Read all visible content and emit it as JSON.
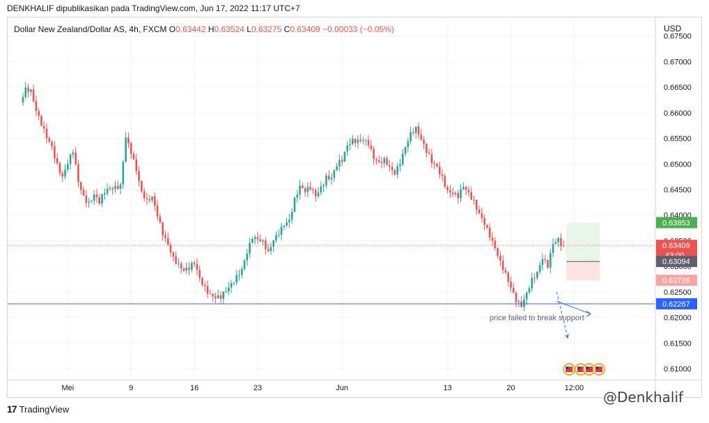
{
  "header": {
    "publish_line": "DENKHALIF dipublikasikan pada TradingView.com, Jun 17, 2022 11:17 UTC+7"
  },
  "legend": {
    "symbol": "Dollar New Zealand/Dollar AS, 4h, FXCM",
    "o_label": "O",
    "o_value": "0.63442",
    "h_label": "H",
    "h_value": "0.63524",
    "l_label": "L",
    "l_value": "0.63275",
    "c_label": "C",
    "c_value": "0.63409",
    "change": "−0.00033 (−0.05%)"
  },
  "currency": "USD",
  "footer": {
    "brand": "TradingView",
    "watermark": "@Denkhalif"
  },
  "colors": {
    "up": "#26a69a",
    "down": "#ef5350",
    "support": "#2962ff",
    "profit_zone": "#e8f5e9",
    "loss_zone": "#fde2e2",
    "grid": "#f0f3fa",
    "axis_text": "#131722"
  },
  "chart_data": {
    "type": "candlestick",
    "symbol": "NZDUSD",
    "timeframe": "4h",
    "ylim": [
      0.6085,
      0.6755
    ],
    "y_ticks": [
      "0.67500",
      "0.67000",
      "0.66500",
      "0.66000",
      "0.65500",
      "0.65000",
      "0.64500",
      "0.64000",
      "0.63500",
      "0.63000",
      "0.62500",
      "0.62000",
      "0.61500",
      "0.61000"
    ],
    "x_ticks": [
      "Mei",
      "9",
      "16",
      "23",
      "Jun",
      "13",
      "20",
      "12:00"
    ],
    "close_path": [
      [
        0,
        0.662
      ],
      [
        2,
        0.664
      ],
      [
        4,
        0.6635
      ],
      [
        6,
        0.66
      ],
      [
        8,
        0.658
      ],
      [
        10,
        0.656
      ],
      [
        12,
        0.654
      ],
      [
        14,
        0.65
      ],
      [
        16,
        0.647
      ],
      [
        18,
        0.6495
      ],
      [
        20,
        0.652
      ],
      [
        22,
        0.6465
      ],
      [
        24,
        0.644
      ],
      [
        26,
        0.643
      ],
      [
        28,
        0.6445
      ],
      [
        30,
        0.6425
      ],
      [
        32,
        0.644
      ],
      [
        34,
        0.6445
      ],
      [
        36,
        0.645
      ],
      [
        38,
        0.646
      ],
      [
        40,
        0.656
      ],
      [
        42,
        0.653
      ],
      [
        44,
        0.649
      ],
      [
        46,
        0.644
      ],
      [
        48,
        0.642
      ],
      [
        50,
        0.643
      ],
      [
        52,
        0.64
      ],
      [
        54,
        0.637
      ],
      [
        56,
        0.635
      ],
      [
        58,
        0.632
      ],
      [
        60,
        0.63
      ],
      [
        62,
        0.6285
      ],
      [
        64,
        0.629
      ],
      [
        66,
        0.6305
      ],
      [
        68,
        0.628
      ],
      [
        70,
        0.6265
      ],
      [
        72,
        0.625
      ],
      [
        74,
        0.624
      ],
      [
        76,
        0.6235
      ],
      [
        78,
        0.6245
      ],
      [
        80,
        0.626
      ],
      [
        82,
        0.628
      ],
      [
        84,
        0.63
      ],
      [
        86,
        0.6335
      ],
      [
        88,
        0.636
      ],
      [
        90,
        0.635
      ],
      [
        92,
        0.634
      ],
      [
        94,
        0.632
      ],
      [
        96,
        0.635
      ],
      [
        98,
        0.637
      ],
      [
        100,
        0.639
      ],
      [
        102,
        0.6395
      ],
      [
        104,
        0.643
      ],
      [
        106,
        0.645
      ],
      [
        108,
        0.644
      ],
      [
        110,
        0.645
      ],
      [
        112,
        0.644
      ],
      [
        114,
        0.646
      ],
      [
        116,
        0.648
      ],
      [
        118,
        0.6475
      ],
      [
        120,
        0.6495
      ],
      [
        122,
        0.65
      ],
      [
        124,
        0.653
      ],
      [
        126,
        0.6545
      ],
      [
        128,
        0.655
      ],
      [
        130,
        0.6555
      ],
      [
        132,
        0.6545
      ],
      [
        134,
        0.651
      ],
      [
        136,
        0.6495
      ],
      [
        138,
        0.65
      ],
      [
        140,
        0.649
      ],
      [
        142,
        0.6485
      ],
      [
        144,
        0.651
      ],
      [
        146,
        0.654
      ],
      [
        148,
        0.656
      ],
      [
        150,
        0.6565
      ],
      [
        152,
        0.654
      ],
      [
        154,
        0.652
      ],
      [
        156,
        0.6505
      ],
      [
        158,
        0.65
      ],
      [
        160,
        0.648
      ],
      [
        162,
        0.645
      ],
      [
        164,
        0.644
      ],
      [
        166,
        0.643
      ],
      [
        168,
        0.645
      ],
      [
        170,
        0.644
      ],
      [
        172,
        0.643
      ],
      [
        174,
        0.641
      ],
      [
        176,
        0.639
      ],
      [
        178,
        0.636
      ],
      [
        180,
        0.633
      ],
      [
        182,
        0.63
      ],
      [
        184,
        0.628
      ],
      [
        186,
        0.626
      ],
      [
        188,
        0.624
      ],
      [
        190,
        0.623
      ],
      [
        192,
        0.625
      ],
      [
        194,
        0.627
      ],
      [
        196,
        0.628
      ],
      [
        198,
        0.631
      ],
      [
        200,
        0.63
      ],
      [
        202,
        0.635
      ],
      [
        204,
        0.636
      ],
      [
        206,
        0.6341
      ]
    ],
    "support_level": "0.62267",
    "price_labels": {
      "target": "0.63853",
      "current": "0.63409",
      "countdown": "43:00",
      "entry": "0.63094",
      "stop": "0.62726",
      "support": "0.62267"
    },
    "position": {
      "entry": 0.63094,
      "target": 0.63853,
      "stop": 0.62726
    },
    "annotation": "price failed to break support",
    "grid": true
  }
}
